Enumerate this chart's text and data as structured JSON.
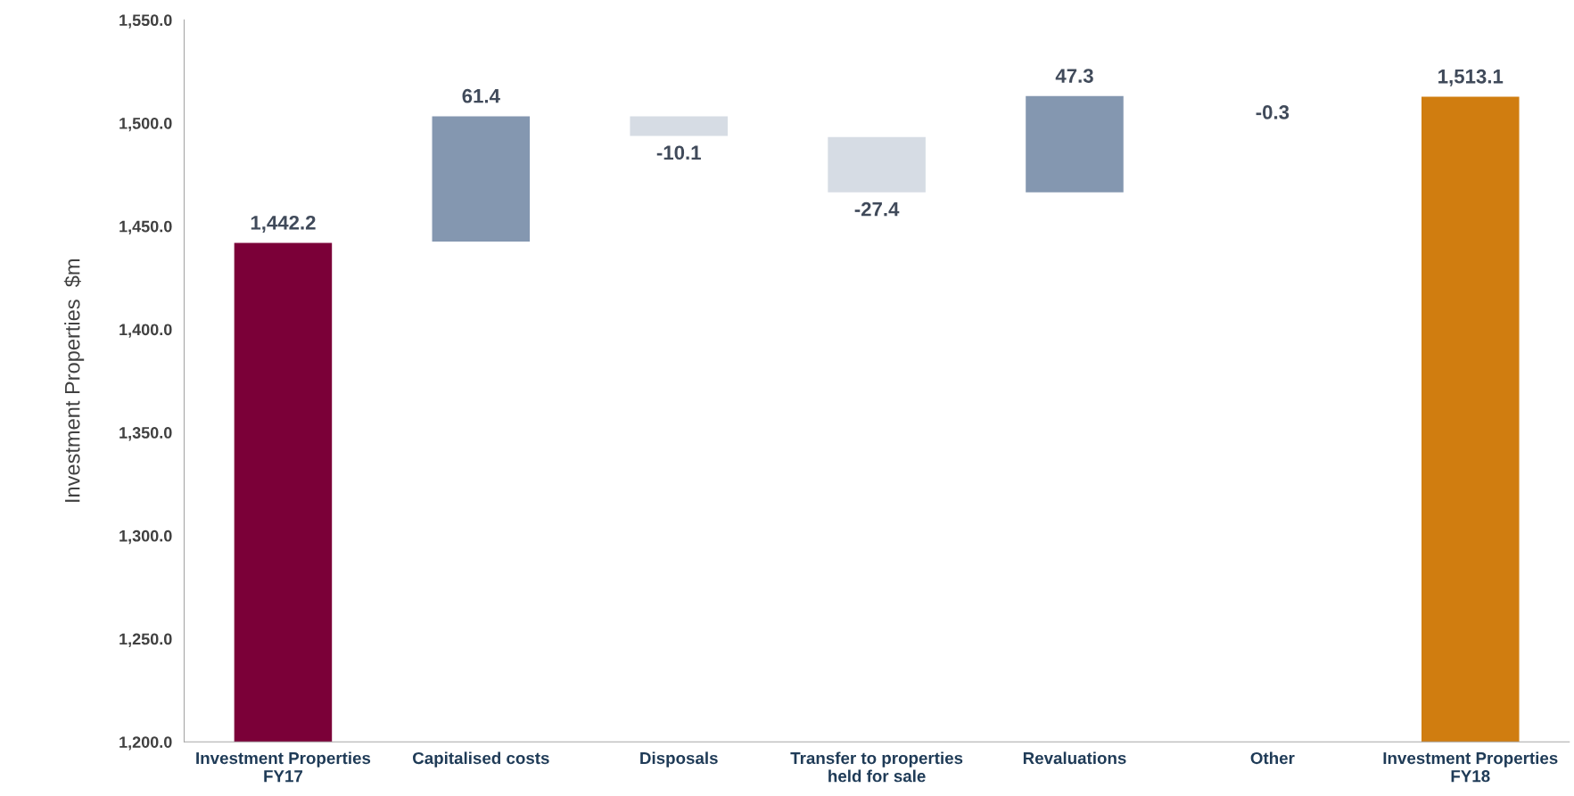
{
  "chart_data": {
    "type": "bar",
    "ylabel": "Investment Properties  $m",
    "categories": [
      "Investment Properties\nFY17",
      "Capitalised costs",
      "Disposals",
      "Transfer to properties\nheld for sale",
      "Revaluations",
      "Other",
      "Investment Properties\nFY18"
    ],
    "values": [
      1442.2,
      61.4,
      -10.1,
      -27.4,
      47.3,
      -0.3,
      1513.1
    ],
    "base": [
      0,
      1442.2,
      1503.6,
      1493.5,
      1466.1,
      1513.4,
      0
    ],
    "colors": [
      "#7b0038",
      "#8497b0",
      "#d6dce4",
      "#d6dce4",
      "#8497b0",
      "#d6dce4",
      "#d07d10"
    ],
    "value_labels": [
      "1,442.2",
      "61.4",
      "-10.1",
      "-27.4",
      "47.3",
      "-0.3",
      "1,513.1"
    ],
    "ylim": [
      1200,
      1550
    ],
    "yticks": [
      {
        "value": 1200,
        "label": "1,200.0"
      },
      {
        "value": 1250,
        "label": "1,250.0"
      },
      {
        "value": 1300,
        "label": "1,300.0"
      },
      {
        "value": 1350,
        "label": "1,350.0"
      },
      {
        "value": 1400,
        "label": "1,400.0"
      },
      {
        "value": 1450,
        "label": "1,450.0"
      },
      {
        "value": 1500,
        "label": "1,500.0"
      },
      {
        "value": 1550,
        "label": "1,550.0"
      }
    ],
    "grid": false,
    "legend": false
  }
}
